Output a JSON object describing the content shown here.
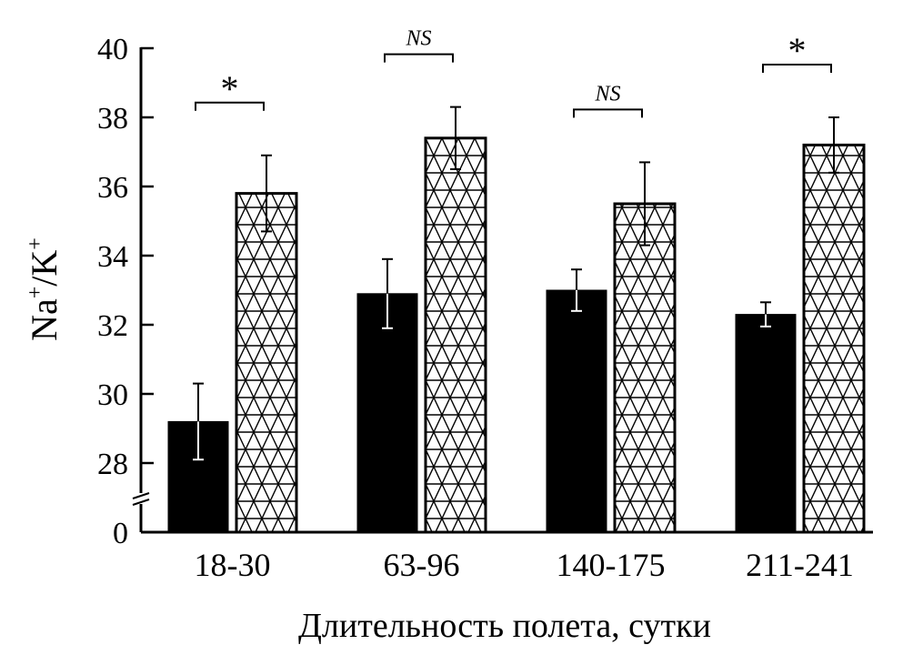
{
  "chart_data": {
    "type": "bar",
    "categories": [
      "18-30",
      "63-96",
      "140-175",
      "211-241"
    ],
    "series": [
      {
        "fill": "#000000",
        "pattern": "solid",
        "values": [
          29.2,
          32.9,
          33.0,
          32.3
        ],
        "errors": [
          1.1,
          1.0,
          0.6,
          0.35
        ]
      },
      {
        "fill": "#ffffff",
        "pattern": "triangle-hatch",
        "values": [
          35.8,
          37.4,
          35.5,
          37.2
        ],
        "errors": [
          1.1,
          0.9,
          1.2,
          0.8
        ]
      }
    ],
    "significance": [
      "*",
      "NS",
      "NS",
      "*"
    ],
    "ylabel_main": "Na",
    "ylabel_sup1": "+",
    "ylabel_slash": "/K",
    "ylabel_sup2": "+",
    "xlabel": "Длительность полета, сутки",
    "yticks": [
      "0",
      "28",
      "30",
      "32",
      "34",
      "36",
      "38",
      "40"
    ],
    "ylim": [
      27,
      40
    ],
    "axis_break": true,
    "grid": false,
    "legend": "none"
  }
}
